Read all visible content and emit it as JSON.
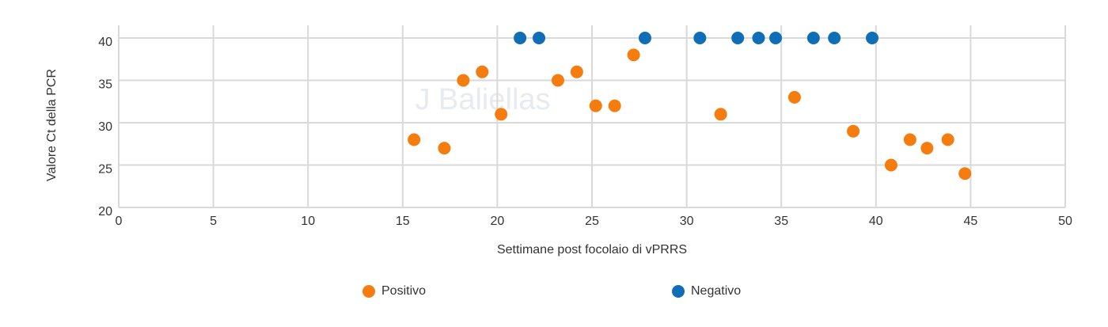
{
  "chart_data": {
    "type": "scatter",
    "watermark": "J Baliellas",
    "x_label": "Settimane post focolaio di vPRRS",
    "y_label": "Valore Ct della PCR",
    "xlim": [
      0,
      50
    ],
    "xticks": [
      0,
      5,
      10,
      15,
      20,
      25,
      30,
      35,
      40,
      45,
      50
    ],
    "ylim": [
      20,
      40
    ],
    "yticks": [
      20,
      25,
      30,
      35,
      40
    ],
    "grid": true,
    "legend": "bottom",
    "series": [
      {
        "name": "Positivo",
        "color": "#f57c0f",
        "x": [
          15.6,
          17.2,
          18.2,
          19.2,
          20.2,
          23.2,
          24.2,
          25.2,
          26.2,
          27.2,
          31.8,
          35.7,
          38.8,
          40.8,
          41.8,
          42.7,
          43.8,
          44.7
        ],
        "y": [
          28,
          27,
          35,
          36,
          31,
          35,
          36,
          32,
          32,
          38,
          31,
          33,
          29,
          25,
          28,
          27,
          28,
          24
        ]
      },
      {
        "name": "Negativo",
        "color": "#0f6eb5",
        "x": [
          21.2,
          22.2,
          27.8,
          30.7,
          32.7,
          33.8,
          34.7,
          36.7,
          37.8,
          39.8
        ],
        "y": [
          40,
          40,
          40,
          40,
          40,
          40,
          40,
          40,
          40,
          40
        ]
      }
    ]
  }
}
